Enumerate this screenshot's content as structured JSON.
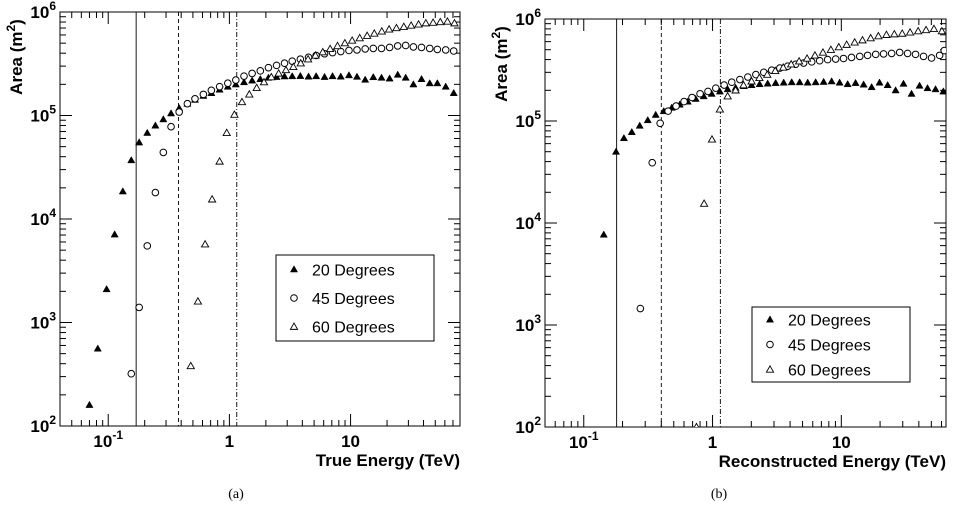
{
  "chart_data": [
    {
      "type": "scatter",
      "caption": "(a)",
      "xlabel": "True Energy (TeV)",
      "ylabel": "Area",
      "ylabel_unit": "(m",
      "ylabel_sup": "2",
      "ylabel_close": ")",
      "xscale": "log",
      "yscale": "log",
      "xlim": [
        0.04,
        80
      ],
      "ylim": [
        100,
        1000000
      ],
      "xticks": [
        {
          "v": 0.1,
          "b": "10",
          "e": "-1"
        },
        {
          "v": 1,
          "t": "1"
        },
        {
          "v": 10,
          "t": "10"
        }
      ],
      "yticks": [
        {
          "v": 100,
          "b": "10",
          "e": "2"
        },
        {
          "v": 1000,
          "b": "10",
          "e": "3"
        },
        {
          "v": 10000,
          "b": "10",
          "e": "4"
        },
        {
          "v": 100000,
          "b": "10",
          "e": "5"
        },
        {
          "v": 1000000,
          "b": "10",
          "e": "6"
        }
      ],
      "vlines": [
        {
          "x": 0.17,
          "style": "solid"
        },
        {
          "x": 0.38,
          "style": "dashed"
        },
        {
          "x": 1.15,
          "style": "dashdot"
        }
      ],
      "legend": {
        "position": "center-right"
      },
      "series": [
        {
          "name": "20 Degrees",
          "marker": "filled-triangle",
          "x": [
            0.07,
            0.082,
            0.097,
            0.113,
            0.132,
            0.155,
            0.18,
            0.21,
            0.245,
            0.285,
            0.33,
            0.385,
            0.45,
            0.52,
            0.61,
            0.71,
            0.83,
            0.97,
            1.13,
            1.32,
            1.54,
            1.8,
            2.1,
            2.45,
            2.85,
            3.3,
            3.85,
            4.5,
            5.2,
            6.1,
            7.1,
            8.3,
            9.7,
            11.3,
            13.2,
            15.4,
            18,
            21,
            24.5,
            28.5,
            33,
            38.5,
            45,
            52,
            61,
            71
          ],
          "y": [
            160,
            560,
            2100,
            7100,
            18500,
            37000,
            55000,
            68000,
            80000,
            92000,
            105000,
            118000,
            130000,
            142000,
            155000,
            165000,
            178000,
            190000,
            200000,
            210000,
            218000,
            225000,
            232000,
            236000,
            239000,
            240000,
            241000,
            238000,
            240000,
            236000,
            240000,
            238000,
            245000,
            237000,
            222000,
            235000,
            232000,
            228000,
            248000,
            232000,
            200000,
            225000,
            205000,
            205000,
            190000,
            165000
          ]
        },
        {
          "name": "45 Degrees",
          "marker": "open-circle",
          "x": [
            0.155,
            0.18,
            0.21,
            0.245,
            0.285,
            0.33,
            0.385,
            0.45,
            0.52,
            0.61,
            0.71,
            0.83,
            0.97,
            1.13,
            1.32,
            1.54,
            1.8,
            2.1,
            2.45,
            2.85,
            3.3,
            3.85,
            4.5,
            5.2,
            6.1,
            7.1,
            8.3,
            9.7,
            11.3,
            13.2,
            15.4,
            18,
            21,
            24.5,
            28.5,
            33,
            38.5,
            45,
            52,
            61,
            71
          ],
          "y": [
            320,
            1400,
            5500,
            18000,
            44000,
            78000,
            108000,
            130000,
            145000,
            160000,
            175000,
            190000,
            205000,
            220000,
            240000,
            255000,
            270000,
            290000,
            305000,
            320000,
            335000,
            350000,
            365000,
            380000,
            395000,
            405000,
            415000,
            425000,
            430000,
            440000,
            445000,
            445000,
            455000,
            470000,
            475000,
            460000,
            455000,
            445000,
            435000,
            430000,
            420000
          ]
        },
        {
          "name": "60 Degrees",
          "marker": "open-triangle",
          "x": [
            0.48,
            0.55,
            0.63,
            0.72,
            0.83,
            0.95,
            1.1,
            1.27,
            1.46,
            1.68,
            1.93,
            2.22,
            2.55,
            2.93,
            3.37,
            3.88,
            4.46,
            5.13,
            5.9,
            6.78,
            7.8,
            8.97,
            10.3,
            11.9,
            13.7,
            15.7,
            18.1,
            20.8,
            23.9,
            27.5,
            31.6,
            36.4,
            41.8,
            48,
            55,
            63,
            72
          ],
          "y": [
            380,
            1600,
            5700,
            15500,
            36000,
            68000,
            102000,
            135000,
            160000,
            185000,
            210000,
            235000,
            255000,
            275000,
            295000,
            320000,
            350000,
            380000,
            410000,
            440000,
            470000,
            500000,
            530000,
            560000,
            590000,
            620000,
            650000,
            680000,
            700000,
            720000,
            740000,
            760000,
            780000,
            790000,
            800000,
            810000,
            780000
          ]
        }
      ]
    },
    {
      "type": "scatter",
      "caption": "(b)",
      "xlabel": "Reconstructed Energy (TeV)",
      "ylabel": "Area",
      "ylabel_unit": "(m",
      "ylabel_sup": "2",
      "ylabel_close": ")",
      "xscale": "log",
      "yscale": "log",
      "xlim": [
        0.05,
        65
      ],
      "ylim": [
        100,
        1000000
      ],
      "xticks": [
        {
          "v": 0.1,
          "b": "10",
          "e": "-1"
        },
        {
          "v": 1,
          "t": "1"
        },
        {
          "v": 10,
          "t": "10"
        }
      ],
      "yticks": [
        {
          "v": 100,
          "b": "10",
          "e": "2"
        },
        {
          "v": 1000,
          "b": "10",
          "e": "3"
        },
        {
          "v": 10000,
          "b": "10",
          "e": "4"
        },
        {
          "v": 100000,
          "b": "10",
          "e": "5"
        },
        {
          "v": 1000000,
          "b": "10",
          "e": "6"
        }
      ],
      "vlines": [
        {
          "x": 0.18,
          "style": "solid"
        },
        {
          "x": 0.4,
          "style": "dashed"
        },
        {
          "x": 1.15,
          "style": "dashdot"
        }
      ],
      "legend": {
        "position": "bottom-right"
      },
      "series": [
        {
          "name": "20 Degrees",
          "marker": "filled-triangle",
          "x": [
            0.143,
            0.178,
            0.205,
            0.236,
            0.272,
            0.314,
            0.362,
            0.418,
            0.482,
            0.556,
            0.642,
            0.74,
            0.854,
            0.985,
            1.14,
            1.31,
            1.51,
            1.75,
            2.01,
            2.32,
            2.68,
            3.09,
            3.57,
            4.12,
            4.75,
            5.48,
            6.32,
            7.29,
            8.41,
            9.7,
            11.2,
            12.9,
            14.9,
            17.2,
            19.8,
            22.9,
            26.4,
            30.4,
            35.1,
            40.5,
            46.7,
            53.9,
            62
          ],
          "y": [
            7700,
            50000,
            68000,
            78000,
            90000,
            102000,
            115000,
            125000,
            135000,
            145000,
            155000,
            165000,
            175000,
            185000,
            195000,
            205000,
            212000,
            220000,
            225000,
            230000,
            233000,
            236000,
            238000,
            240000,
            240000,
            238000,
            240000,
            242000,
            245000,
            238000,
            230000,
            236000,
            228000,
            215000,
            238000,
            225000,
            200000,
            232000,
            185000,
            222000,
            210000,
            205000,
            195000
          ]
        },
        {
          "name": "45 Degrees",
          "marker": "open-circle",
          "x": [
            0.275,
            0.34,
            0.392,
            0.452,
            0.521,
            0.601,
            0.693,
            0.8,
            0.922,
            1.06,
            1.23,
            1.41,
            1.63,
            1.88,
            2.17,
            2.5,
            2.88,
            3.33,
            3.84,
            4.42,
            5.1,
            5.89,
            6.79,
            7.83,
            9.04,
            10.4,
            12,
            13.9,
            16,
            18.5,
            21.3,
            24.6,
            28.4,
            32.7,
            37.7,
            43.5,
            50.2,
            58,
            63
          ],
          "y": [
            1450,
            39000,
            95000,
            125000,
            140000,
            155000,
            170000,
            185000,
            195000,
            210000,
            225000,
            240000,
            255000,
            270000,
            285000,
            300000,
            315000,
            330000,
            345000,
            360000,
            370000,
            380000,
            390000,
            400000,
            405000,
            410000,
            420000,
            430000,
            440000,
            450000,
            455000,
            460000,
            470000,
            460000,
            450000,
            430000,
            415000,
            440000,
            490000
          ]
        },
        {
          "name": "60 Degrees",
          "marker": "open-triangle",
          "x": [
            0.75,
            0.86,
            0.99,
            1.14,
            1.31,
            1.51,
            1.74,
            2.01,
            2.31,
            2.66,
            3.07,
            3.54,
            4.08,
            4.7,
            5.42,
            6.24,
            7.2,
            8.3,
            9.56,
            11,
            12.7,
            14.6,
            16.9,
            19.4,
            22.4,
            25.8,
            29.7,
            34.2,
            39.5,
            45.5,
            52.4,
            60.4
          ],
          "y": [
            100,
            15500,
            66000,
            130000,
            175000,
            200000,
            225000,
            245000,
            265000,
            285000,
            310000,
            335000,
            360000,
            385000,
            410000,
            440000,
            470000,
            500000,
            530000,
            560000,
            590000,
            620000,
            650000,
            680000,
            700000,
            710000,
            720000,
            740000,
            760000,
            780000,
            800000,
            760000
          ]
        }
      ]
    }
  ]
}
